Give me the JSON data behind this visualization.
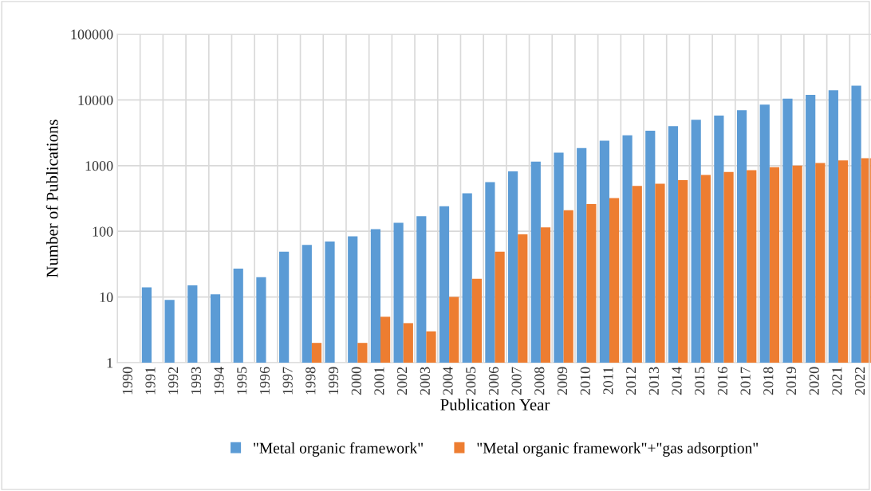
{
  "chart_data": {
    "type": "bar",
    "xlabel": "Publication Year",
    "ylabel": "Number of Publications",
    "categories": [
      "1990",
      "1991",
      "1992",
      "1993",
      "1994",
      "1995",
      "1996",
      "1997",
      "1998",
      "1999",
      "2000",
      "2001",
      "2002",
      "2003",
      "2004",
      "2005",
      "2006",
      "2007",
      "2008",
      "2009",
      "2010",
      "2011",
      "2012",
      "2013",
      "2014",
      "2015",
      "2016",
      "2017",
      "2018",
      "2019",
      "2020",
      "2021",
      "2022"
    ],
    "series": [
      {
        "name": "\"Metal organic framework\"",
        "color": "#5b9bd5",
        "values": [
          null,
          14,
          9,
          15,
          11,
          27,
          20,
          49,
          62,
          70,
          84,
          108,
          135,
          170,
          240,
          380,
          560,
          820,
          1150,
          1580,
          1850,
          2400,
          2900,
          3400,
          4000,
          5000,
          5800,
          7000,
          8500,
          10500,
          12000,
          14000,
          16500
        ]
      },
      {
        "name": "\"Metal organic framework\"+\"gas adsorption\"",
        "color": "#ed7d31",
        "values": [
          null,
          null,
          null,
          null,
          null,
          null,
          null,
          null,
          2,
          null,
          2,
          5,
          4,
          3,
          10,
          19,
          49,
          90,
          115,
          210,
          260,
          320,
          490,
          530,
          600,
          720,
          800,
          850,
          950,
          1000,
          1100,
          1200,
          1300
        ]
      }
    ],
    "log": "y",
    "ylim": [
      1,
      100000
    ],
    "yticks": [
      1,
      10,
      100,
      1000,
      10000,
      100000
    ],
    "grid": true,
    "legend": "bottom"
  }
}
